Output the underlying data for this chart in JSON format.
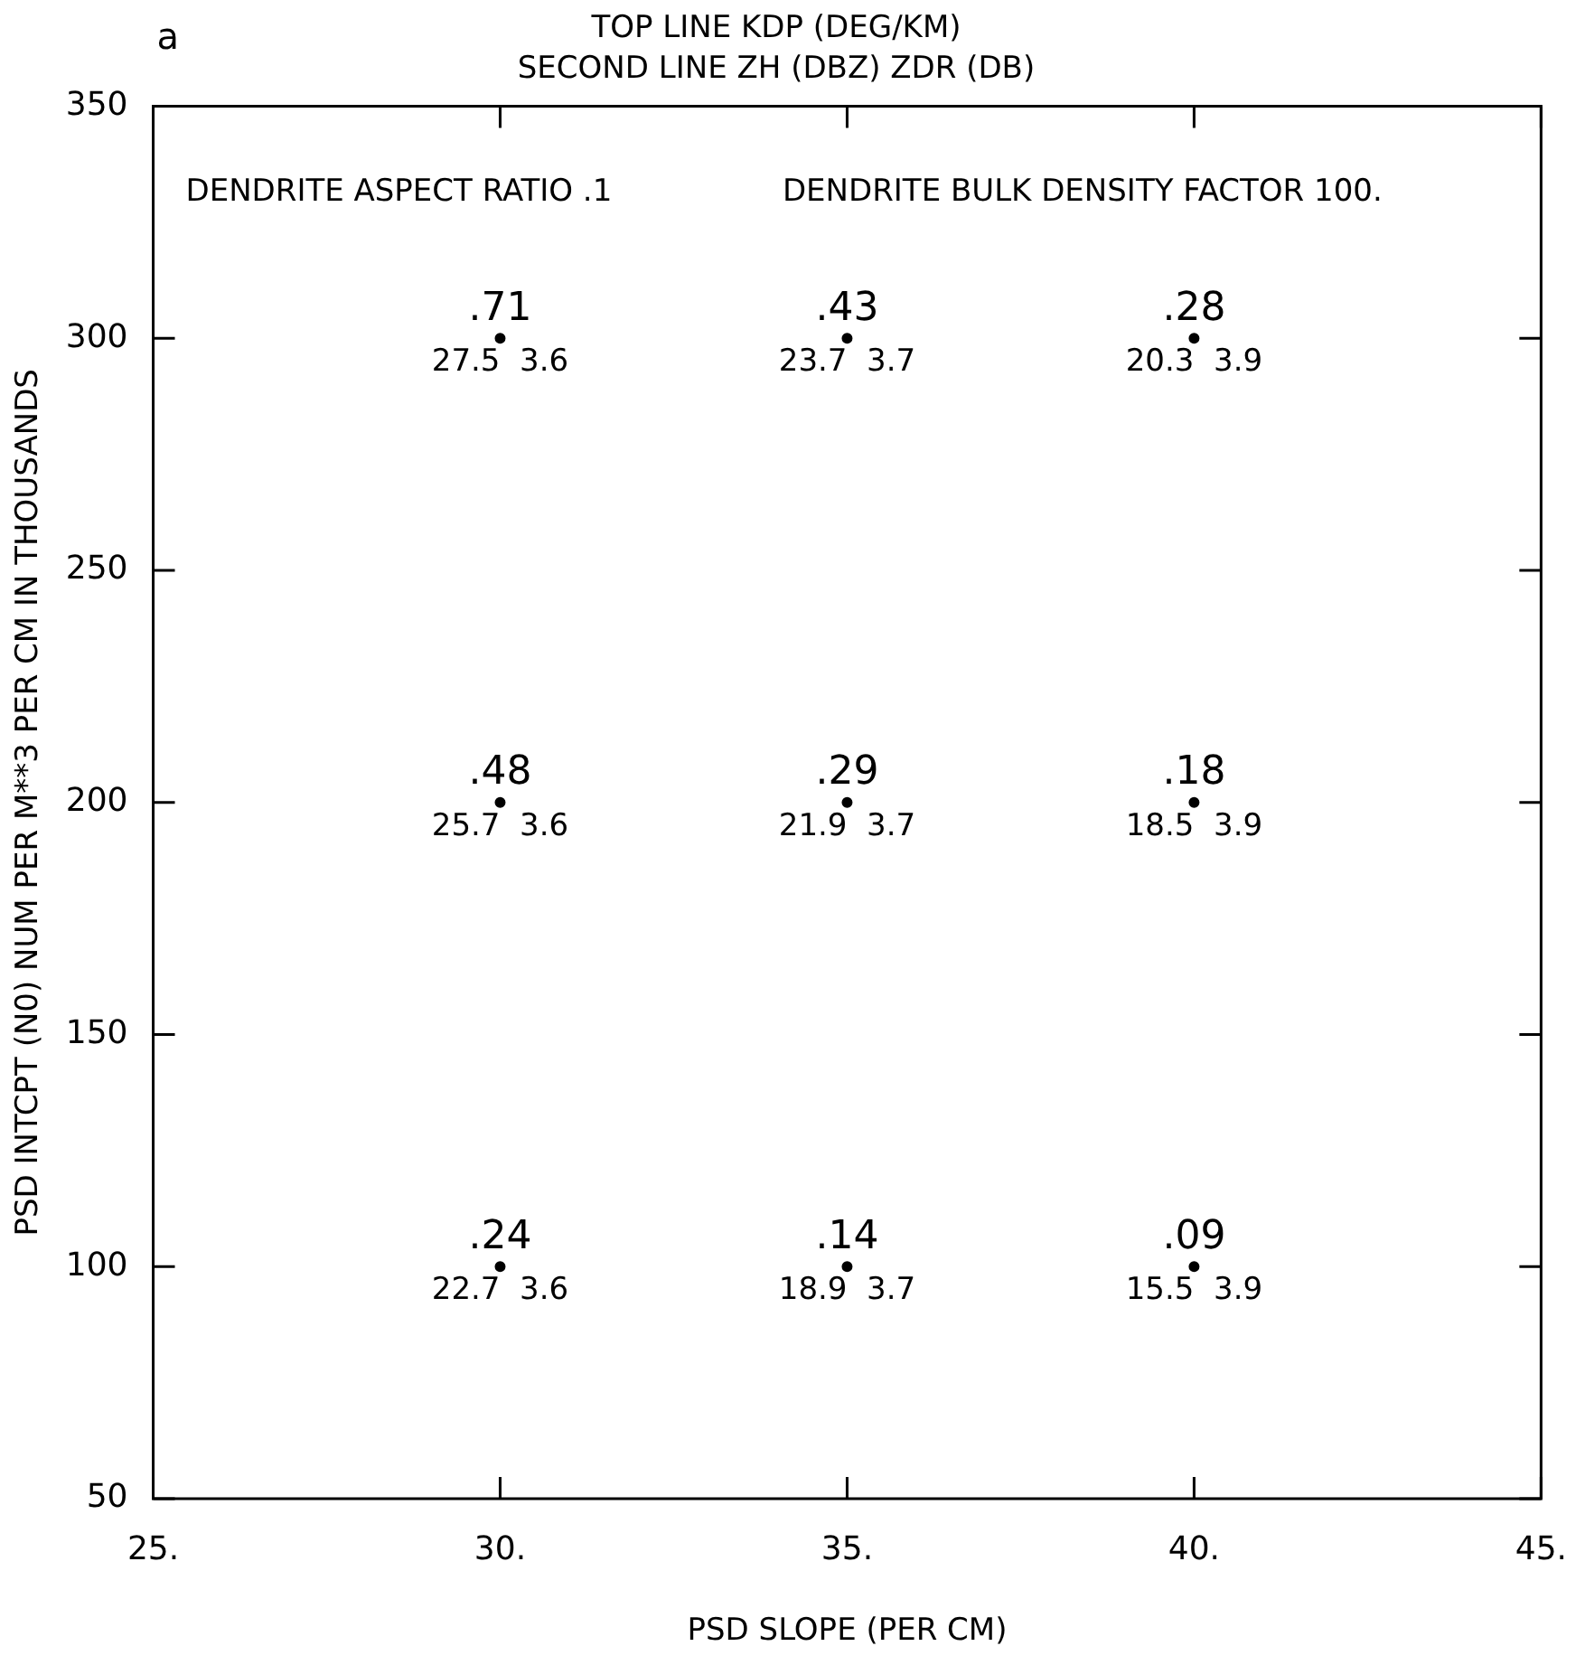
{
  "chart_data": {
    "type": "scatter",
    "marker": "circle",
    "color": "#000000",
    "x": [
      30,
      35,
      40,
      30,
      35,
      40,
      30,
      35,
      40
    ],
    "values": [
      300,
      300,
      300,
      200,
      200,
      200,
      100,
      100,
      100
    ],
    "title": "TOP LINE KDP (DEG/KM)",
    "subtitle": "SECOND LINE ZH (DBZ) ZDR (DB)",
    "xlabel": "PSD SLOPE (PER CM)",
    "ylabel": "PSD INTCPT (N0) NUM PER M**3 PER CM IN THOUSANDS",
    "xlim": [
      25,
      45
    ],
    "ylim": [
      50,
      350
    ],
    "xticks": [
      {
        "value": 25,
        "label": "25."
      },
      {
        "value": 30,
        "label": "30."
      },
      {
        "value": 35,
        "label": "35."
      },
      {
        "value": 40,
        "label": "40."
      },
      {
        "value": 45,
        "label": "45."
      }
    ],
    "yticks": [
      50,
      100,
      150,
      200,
      250,
      300,
      350
    ],
    "annotations": [
      "a",
      "DENDRITE ASPECT RATIO .1",
      "DENDRITE BULK DENSITY FACTOR 100.",
      {
        "text": ".71",
        "x": 30,
        "y": 300
      },
      {
        "text": "27.5  3.6",
        "x": 30,
        "y": 300
      },
      {
        "text": ".43",
        "x": 35,
        "y": 300
      },
      {
        "text": "23.7  3.7",
        "x": 35,
        "y": 300
      },
      {
        "text": ".28",
        "x": 40,
        "y": 300
      },
      {
        "text": "20.3  3.9",
        "x": 40,
        "y": 300
      },
      {
        "text": ".48",
        "x": 30,
        "y": 200
      },
      {
        "text": "25.7  3.6",
        "x": 30,
        "y": 200
      },
      {
        "text": ".29",
        "x": 35,
        "y": 200
      },
      {
        "text": "21.9  3.7",
        "x": 35,
        "y": 200
      },
      {
        "text": ".18",
        "x": 40,
        "y": 200
      },
      {
        "text": "18.5  3.9",
        "x": 40,
        "y": 200
      },
      {
        "text": ".24",
        "x": 30,
        "y": 100
      },
      {
        "text": "22.7  3.6",
        "x": 30,
        "y": 100
      },
      {
        "text": ".14",
        "x": 35,
        "y": 100
      },
      {
        "text": "18.9  3.7",
        "x": 35,
        "y": 100
      },
      {
        "text": ".09",
        "x": 40,
        "y": 100
      },
      {
        "text": "15.5  3.9",
        "x": 40,
        "y": 100
      }
    ]
  }
}
